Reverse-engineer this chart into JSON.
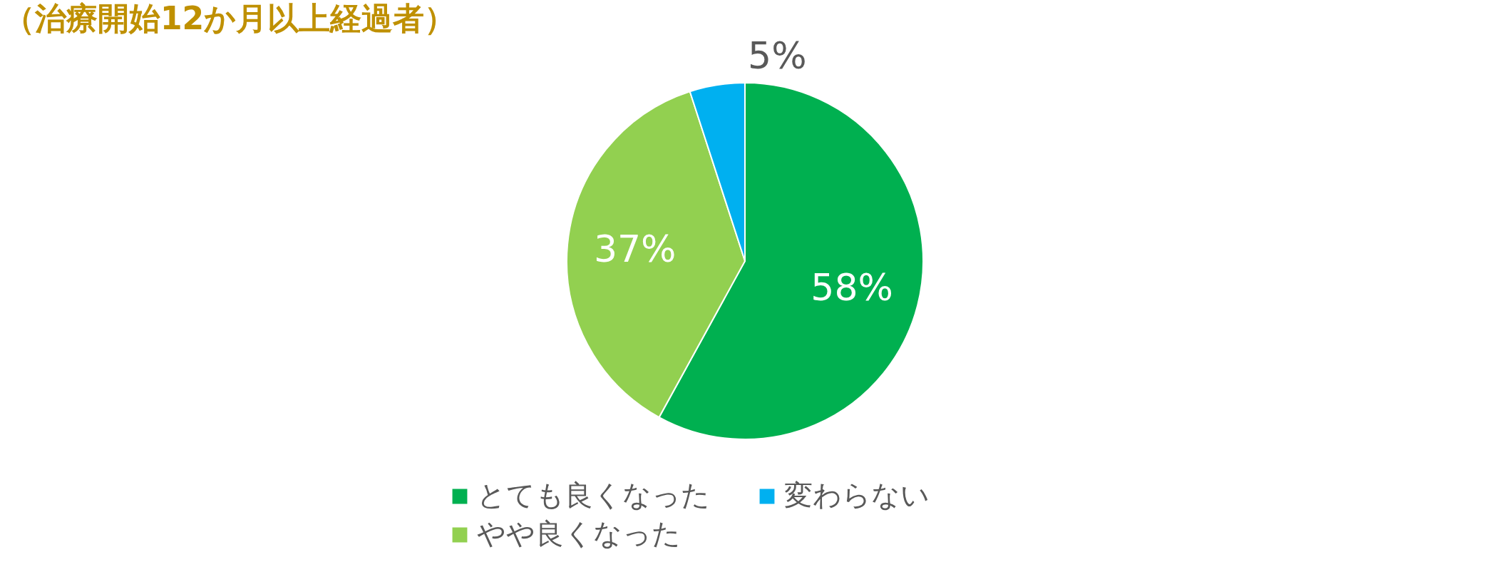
{
  "chart_data": {
    "type": "pie",
    "title": "（治療開始12か月以上経過者）",
    "categories": [
      "とても良くなった",
      "やや良くなった",
      "変わらない"
    ],
    "values": [
      58,
      37,
      5
    ],
    "colors": [
      "#00b050",
      "#92d050",
      "#00b0f0"
    ],
    "value_labels": [
      "58%",
      "37%",
      "5%"
    ],
    "legend": "bottom"
  }
}
